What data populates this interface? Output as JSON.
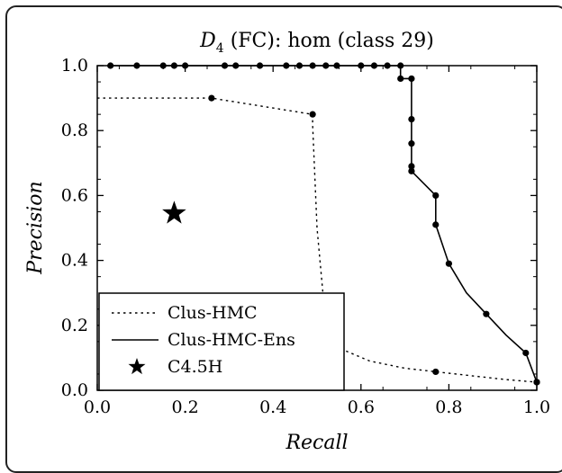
{
  "chart_data": {
    "type": "line",
    "title_main": "D",
    "title_sub": "4",
    "title_rest": " (FC): hom (class 29)",
    "xlabel": "Recall",
    "ylabel": "Precision",
    "xlim": [
      0.0,
      1.0
    ],
    "ylim": [
      0.0,
      1.0
    ],
    "xticks": [
      "0.0",
      "0.2",
      "0.4",
      "0.6",
      "0.8",
      "1.0"
    ],
    "yticks": [
      "0.0",
      "0.2",
      "0.4",
      "0.6",
      "0.8",
      "1.0"
    ],
    "legend_position": "bottom-left",
    "series": [
      {
        "name": "Clus-HMC",
        "style": "dotted",
        "color": "#000000",
        "points": [
          [
            0.0,
            0.9
          ],
          [
            0.26,
            0.9
          ],
          [
            0.49,
            0.85
          ],
          [
            0.49,
            0.82
          ],
          [
            0.5,
            0.5
          ],
          [
            0.52,
            0.2
          ],
          [
            0.55,
            0.13
          ],
          [
            0.62,
            0.09
          ],
          [
            0.7,
            0.068
          ],
          [
            0.77,
            0.057
          ],
          [
            0.85,
            0.045
          ],
          [
            0.93,
            0.033
          ],
          [
            1.0,
            0.025
          ]
        ],
        "markers": [
          [
            0.26,
            0.9
          ],
          [
            0.49,
            0.85
          ],
          [
            0.77,
            0.057
          ],
          [
            1.0,
            0.025
          ]
        ]
      },
      {
        "name": "Clus-HMC-Ens",
        "style": "solid",
        "color": "#000000",
        "points": [
          [
            0.03,
            1.0
          ],
          [
            0.69,
            1.0
          ],
          [
            0.69,
            0.96
          ],
          [
            0.715,
            0.96
          ],
          [
            0.715,
            0.835
          ],
          [
            0.715,
            0.76
          ],
          [
            0.715,
            0.69
          ],
          [
            0.715,
            0.675
          ],
          [
            0.77,
            0.6
          ],
          [
            0.77,
            0.51
          ],
          [
            0.8,
            0.39
          ],
          [
            0.84,
            0.3
          ],
          [
            0.885,
            0.235
          ],
          [
            0.93,
            0.17
          ],
          [
            0.975,
            0.115
          ],
          [
            1.0,
            0.025
          ]
        ],
        "markers": [
          [
            0.03,
            1.0
          ],
          [
            0.09,
            1.0
          ],
          [
            0.15,
            1.0
          ],
          [
            0.175,
            1.0
          ],
          [
            0.2,
            1.0
          ],
          [
            0.29,
            1.0
          ],
          [
            0.315,
            1.0
          ],
          [
            0.37,
            1.0
          ],
          [
            0.43,
            1.0
          ],
          [
            0.46,
            1.0
          ],
          [
            0.49,
            1.0
          ],
          [
            0.52,
            1.0
          ],
          [
            0.545,
            1.0
          ],
          [
            0.6,
            1.0
          ],
          [
            0.63,
            1.0
          ],
          [
            0.66,
            1.0
          ],
          [
            0.69,
            1.0
          ],
          [
            0.69,
            0.96
          ],
          [
            0.715,
            0.96
          ],
          [
            0.715,
            0.835
          ],
          [
            0.715,
            0.76
          ],
          [
            0.715,
            0.69
          ],
          [
            0.715,
            0.675
          ],
          [
            0.77,
            0.6
          ],
          [
            0.77,
            0.51
          ],
          [
            0.8,
            0.39
          ],
          [
            0.885,
            0.235
          ],
          [
            0.975,
            0.115
          ],
          [
            1.0,
            0.025
          ]
        ]
      },
      {
        "name": "C4.5H",
        "style": "star",
        "color": "#000000",
        "points": [
          [
            0.175,
            0.545
          ]
        ]
      }
    ]
  }
}
